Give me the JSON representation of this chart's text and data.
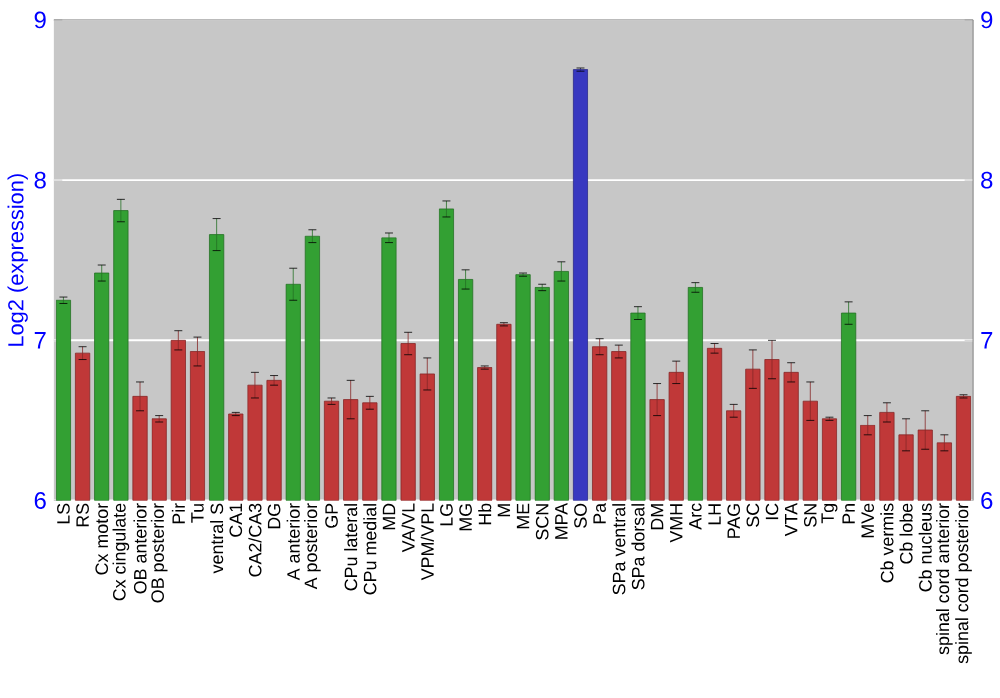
{
  "chart_data": {
    "type": "bar",
    "ylabel": "Log2 (expression)",
    "categories": [
      "LS",
      "RS",
      "Cx motor",
      "Cx cingulate",
      "OB anterior",
      "OB posterior",
      "Pir",
      "Tu",
      "ventral S",
      "CA1",
      "CA2/CA3",
      "DG",
      "A anterior",
      "A posterior",
      "GP",
      "CPu lateral",
      "CPu medial",
      "MD",
      "VA/VL",
      "VPM/VPL",
      "LG",
      "MG",
      "Hb",
      "M",
      "ME",
      "SCN",
      "MPA",
      "SO",
      "Pa",
      "SPa ventral",
      "SPa dorsal",
      "DM",
      "VMH",
      "Arc",
      "LH",
      "PAG",
      "SC",
      "IC",
      "VTA",
      "SN",
      "Tg",
      "Pn",
      "MVe",
      "Cb vermis",
      "Cb lobe",
      "Cb nucleus",
      "spinal cord anterior",
      "spinal cord posterior"
    ],
    "values": [
      7.25,
      6.92,
      7.42,
      7.81,
      6.65,
      6.51,
      7.0,
      6.93,
      7.66,
      6.54,
      6.72,
      6.75,
      7.35,
      7.65,
      6.62,
      6.63,
      6.61,
      7.64,
      6.98,
      6.79,
      7.82,
      7.38,
      6.83,
      7.1,
      7.41,
      7.33,
      7.43,
      8.69,
      6.96,
      6.93,
      7.17,
      6.63,
      6.8,
      7.33,
      6.95,
      6.56,
      6.82,
      6.88,
      6.8,
      6.62,
      6.51,
      7.17,
      6.47,
      6.55,
      6.41,
      6.44,
      6.36,
      6.65
    ],
    "errors": [
      0.02,
      0.04,
      0.05,
      0.07,
      0.09,
      0.02,
      0.06,
      0.09,
      0.1,
      0.01,
      0.08,
      0.03,
      0.1,
      0.04,
      0.02,
      0.12,
      0.04,
      0.03,
      0.07,
      0.1,
      0.05,
      0.06,
      0.01,
      0.01,
      0.01,
      0.02,
      0.06,
      0.01,
      0.05,
      0.04,
      0.04,
      0.1,
      0.07,
      0.03,
      0.03,
      0.04,
      0.12,
      0.12,
      0.06,
      0.12,
      0.01,
      0.07,
      0.06,
      0.06,
      0.1,
      0.12,
      0.05,
      0.01
    ],
    "colors": [
      "#33a033",
      "#c03838",
      "#33a033",
      "#33a033",
      "#c03838",
      "#c03838",
      "#c03838",
      "#c03838",
      "#33a033",
      "#c03838",
      "#c03838",
      "#c03838",
      "#33a033",
      "#33a033",
      "#c03838",
      "#c03838",
      "#c03838",
      "#33a033",
      "#c03838",
      "#c03838",
      "#33a033",
      "#33a033",
      "#c03838",
      "#c03838",
      "#33a033",
      "#33a033",
      "#33a033",
      "#3838c0",
      "#c03838",
      "#c03838",
      "#33a033",
      "#c03838",
      "#c03838",
      "#33a033",
      "#c03838",
      "#c03838",
      "#c03838",
      "#c03838",
      "#c03838",
      "#c03838",
      "#c03838",
      "#33a033",
      "#c03838",
      "#c03838",
      "#c03838",
      "#c03838",
      "#c03838",
      "#c03838"
    ],
    "ylim": [
      6,
      9
    ],
    "yticks": [
      6,
      7,
      8,
      9
    ],
    "y2lim": [
      6,
      9
    ],
    "y2ticks": [
      6,
      7,
      8,
      9
    ],
    "grid": "y"
  }
}
